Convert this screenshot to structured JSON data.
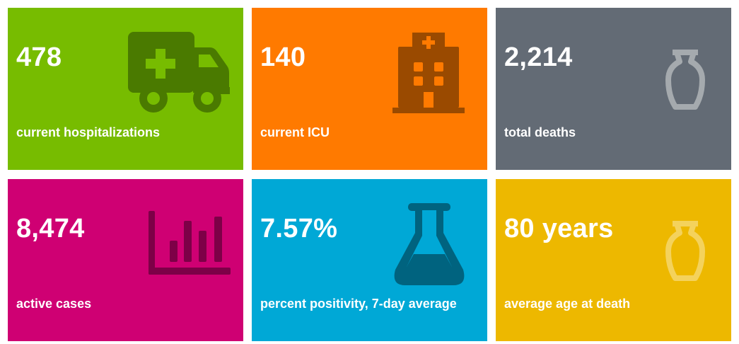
{
  "tiles": [
    {
      "value": "478",
      "label": "current hospitalizations",
      "color": "#77bc00",
      "icon": "ambulance-icon",
      "icon_color": "#4a7a00"
    },
    {
      "value": "140",
      "label": "current ICU",
      "color": "#ff7a00",
      "icon": "hospital-icon",
      "icon_color": "#9a4a00"
    },
    {
      "value": "2,214",
      "label": "total deaths",
      "color": "#636b75",
      "icon": "urn-icon",
      "icon_color": "#a5aaae"
    },
    {
      "value": "8,474",
      "label": "active cases",
      "color": "#cf0073",
      "icon": "bar-chart-icon",
      "icon_color": "#7d0047"
    },
    {
      "value": "7.57%",
      "label": "percent positivity, 7-day average",
      "color": "#00a8d6",
      "icon": "flask-icon",
      "icon_color": "#00637f"
    },
    {
      "value": "80 years",
      "label": "average age at death",
      "color": "#edb800",
      "icon": "urn-icon",
      "icon_color": "#f4d25c"
    }
  ]
}
